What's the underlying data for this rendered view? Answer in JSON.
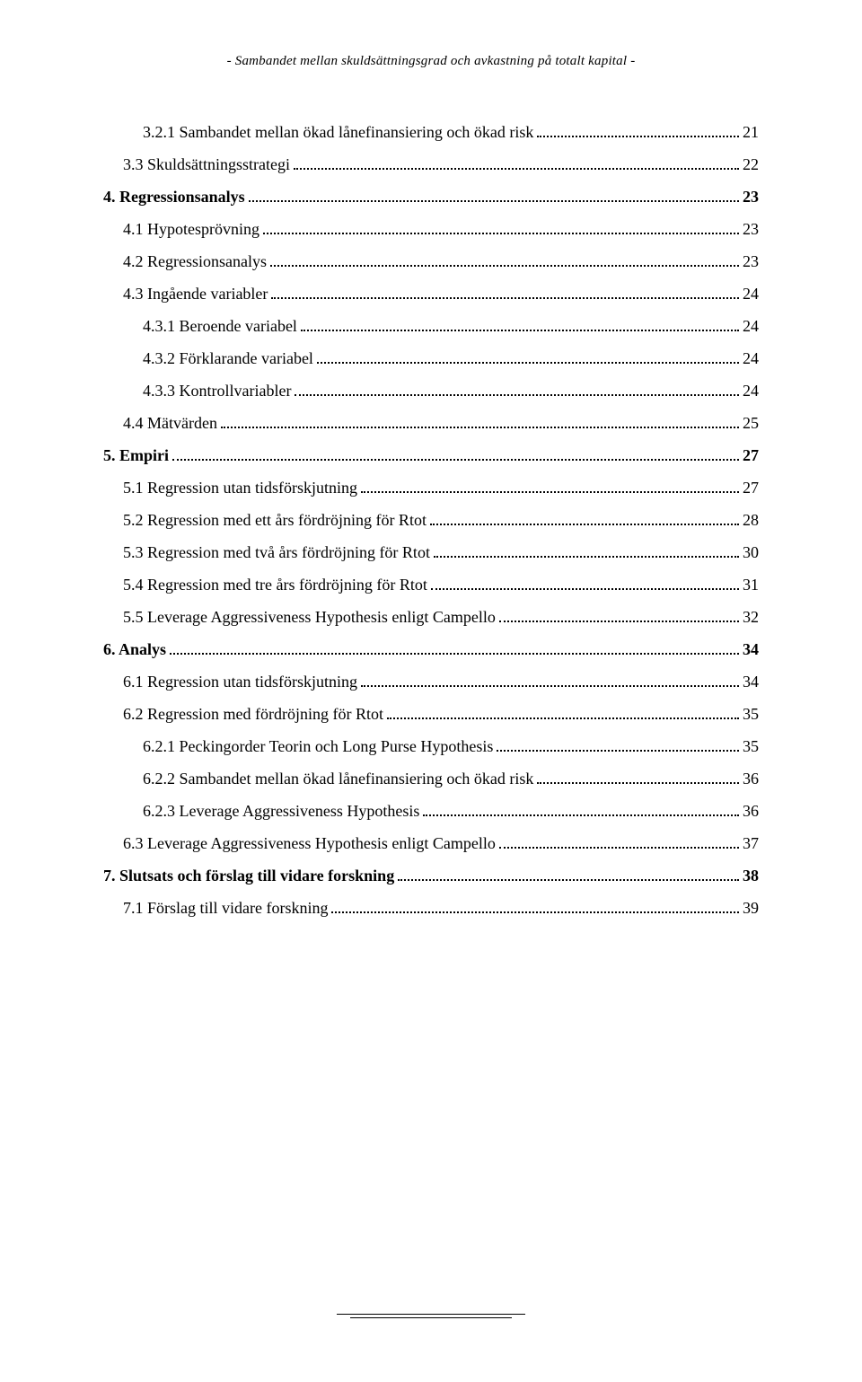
{
  "header": "- Sambandet mellan skuldsättningsgrad och avkastning på totalt kapital -",
  "toc": [
    {
      "label": "3.2.1 Sambandet mellan ökad lånefinansiering och ökad risk",
      "page": "21",
      "indent": 2,
      "bold": false
    },
    {
      "label": "3.3 Skuldsättningsstrategi",
      "page": "22",
      "indent": 1,
      "bold": false,
      "gap": true
    },
    {
      "label": "4. Regressionsanalys",
      "page": "23",
      "indent": 0,
      "bold": true,
      "gap": true
    },
    {
      "label": "4.1 Hypotesprövning",
      "page": "23",
      "indent": 1,
      "bold": false,
      "gap": true
    },
    {
      "label": "4.2 Regressionsanalys",
      "page": "23",
      "indent": 1,
      "bold": false,
      "gap": true
    },
    {
      "label": "4.3 Ingående variabler",
      "page": "24",
      "indent": 1,
      "bold": false,
      "gap": true
    },
    {
      "label": "4.3.1 Beroende variabel",
      "page": "24",
      "indent": 2,
      "bold": false
    },
    {
      "label": "4.3.2 Förklarande variabel",
      "page": "24",
      "indent": 2,
      "bold": false
    },
    {
      "label": "4.3.3 Kontrollvariabler",
      "page": "24",
      "indent": 2,
      "bold": false
    },
    {
      "label": "4.4 Mätvärden",
      "page": "25",
      "indent": 1,
      "bold": false,
      "gap": true
    },
    {
      "label": "5. Empiri",
      "page": "27",
      "indent": 0,
      "bold": true,
      "gap": true
    },
    {
      "label": "5.1 Regression utan tidsförskjutning",
      "page": "27",
      "indent": 1,
      "bold": false,
      "gap": true
    },
    {
      "label": "5.2 Regression med ett års fördröjning för Rtot",
      "page": "28",
      "indent": 1,
      "bold": false,
      "gap": true
    },
    {
      "label": "5.3 Regression med två års fördröjning för Rtot",
      "page": "30",
      "indent": 1,
      "bold": false,
      "gap": true
    },
    {
      "label": "5.4 Regression med tre års fördröjning för Rtot",
      "page": "31",
      "indent": 1,
      "bold": false,
      "gap": true
    },
    {
      "label": "5.5 Leverage Aggressiveness Hypothesis enligt Campello",
      "page": "32",
      "indent": 1,
      "bold": false,
      "gap": true
    },
    {
      "label": "6. Analys",
      "page": "34",
      "indent": 0,
      "bold": true,
      "gap": true
    },
    {
      "label": "6.1 Regression utan tidsförskjutning",
      "page": "34",
      "indent": 1,
      "bold": false,
      "gap": true
    },
    {
      "label": "6.2 Regression med fördröjning för Rtot",
      "page": "35",
      "indent": 1,
      "bold": false,
      "gap": true
    },
    {
      "label": "6.2.1 Peckingorder Teorin och Long Purse Hypothesis",
      "page": "35",
      "indent": 2,
      "bold": false
    },
    {
      "label": "6.2.2 Sambandet mellan ökad lånefinansiering och ökad risk",
      "page": "36",
      "indent": 2,
      "bold": false
    },
    {
      "label": "6.2.3 Leverage Aggressiveness Hypothesis",
      "page": "36",
      "indent": 2,
      "bold": false
    },
    {
      "label": "6.3 Leverage Aggressiveness Hypothesis enligt Campello",
      "page": "37",
      "indent": 1,
      "bold": false,
      "gap": true
    },
    {
      "label": "7. Slutsats och förslag till vidare forskning",
      "page": "38",
      "indent": 0,
      "bold": true,
      "gap": true
    },
    {
      "label": "7.1 Förslag till vidare forskning",
      "page": "39",
      "indent": 1,
      "bold": false,
      "gap": true
    }
  ]
}
